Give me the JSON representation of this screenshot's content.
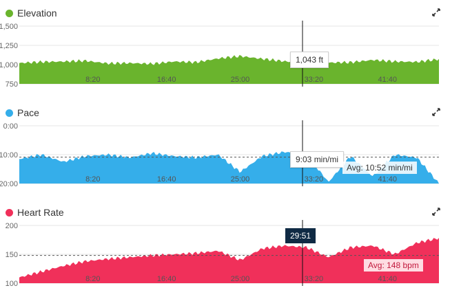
{
  "cursor_time": "29:51",
  "x_ticks": [
    "8:20",
    "16:40",
    "25:00",
    "33:20",
    "41:40"
  ],
  "panels": [
    {
      "id": "elevation",
      "title": "Elevation",
      "color": "#6ab42d",
      "expand_icon": "expand-arrows-icon",
      "y_ticks": [
        "1,500",
        "1,250",
        "1,000",
        "750"
      ],
      "tooltip": "1,043 ft",
      "avg_label": ""
    },
    {
      "id": "pace",
      "title": "Pace",
      "color": "#35aeea",
      "expand_icon": "expand-arrows-icon",
      "y_ticks": [
        "0:00",
        "10:00",
        "20:00"
      ],
      "tooltip": "9:03 min/mi",
      "avg_label": "Avg: 10:52 min/mi"
    },
    {
      "id": "heart_rate",
      "title": "Heart Rate",
      "color": "#f0305a",
      "expand_icon": "expand-arrows-icon",
      "y_ticks": [
        "200",
        "150",
        "100"
      ],
      "tooltip": "",
      "avg_label": "Avg: 148 bpm"
    }
  ],
  "chart_data": [
    {
      "type": "area",
      "title": "Elevation",
      "ylabel": "ft",
      "ylim": [
        750,
        1500
      ],
      "x_unit": "elapsed time (min:sec)",
      "x": [
        "0:00",
        "2:30",
        "5:00",
        "7:30",
        "10:00",
        "12:30",
        "15:00",
        "17:30",
        "20:00",
        "22:30",
        "25:00",
        "27:30",
        "30:00",
        "32:30",
        "35:00",
        "37:30",
        "40:00",
        "42:30",
        "45:00",
        "47:30"
      ],
      "values": [
        1020,
        1035,
        1040,
        1050,
        1015,
        1020,
        1010,
        1040,
        1030,
        1080,
        1110,
        1075,
        1043,
        1020,
        1025,
        1030,
        1060,
        1040,
        1035,
        1070
      ]
    },
    {
      "type": "area",
      "title": "Pace",
      "ylabel": "min/mi",
      "ylim": [
        0,
        20
      ],
      "y_inverted": true,
      "x_unit": "elapsed time (min:sec)",
      "x": [
        "0:00",
        "2:30",
        "5:00",
        "7:30",
        "10:00",
        "12:30",
        "15:00",
        "17:30",
        "20:00",
        "22:30",
        "25:00",
        "27:30",
        "30:00",
        "32:30",
        "35:00",
        "37:30",
        "40:00",
        "42:30",
        "45:00",
        "47:30"
      ],
      "values": [
        11.5,
        10.0,
        12.5,
        10.5,
        10.0,
        11.0,
        9.5,
        10.5,
        11.0,
        10.0,
        16.0,
        10.5,
        9.05,
        10.0,
        19.5,
        10.5,
        17.5,
        10.0,
        11.0,
        20.0
      ],
      "average": 10.87
    },
    {
      "type": "area",
      "title": "Heart Rate",
      "ylabel": "bpm",
      "ylim": [
        100,
        200
      ],
      "x_unit": "elapsed time (min:sec)",
      "x": [
        "0:00",
        "2:30",
        "5:00",
        "7:30",
        "10:00",
        "12:30",
        "15:00",
        "17:30",
        "20:00",
        "22:30",
        "25:00",
        "27:30",
        "30:00",
        "32:30",
        "35:00",
        "37:30",
        "40:00",
        "42:30",
        "45:00",
        "47:30"
      ],
      "values": [
        110,
        120,
        130,
        138,
        142,
        145,
        148,
        150,
        152,
        156,
        140,
        160,
        165,
        162,
        145,
        162,
        165,
        150,
        170,
        178
      ],
      "average": 148
    }
  ]
}
